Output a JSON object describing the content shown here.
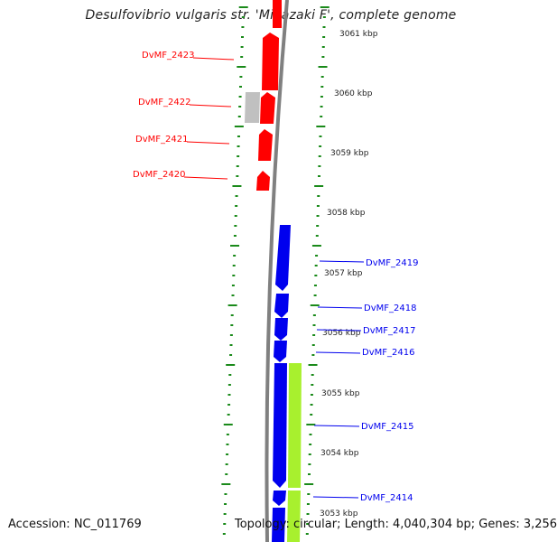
{
  "title": "Desulfovibrio vulgaris str. 'Miyazaki F', complete genome",
  "footer": {
    "accession": "Accession: NC_011769",
    "summary": "Topology: circular; Length: 4,040,304 bp; Genes: 3,256"
  },
  "colors": {
    "forward_cds": "#0000ee",
    "reverse_cds": "#ff0000",
    "other_feature": "#c0c0c0",
    "rna_feature": "#a8f02e",
    "backbone": "#808080",
    "tick": "#1a8a1a"
  },
  "kbp_labels": [
    "3061 kbp",
    "3060 kbp",
    "3059 kbp",
    "3058 kbp",
    "3057 kbp",
    "3056 kbp",
    "3055 kbp",
    "3054 kbp",
    "3053 kbp"
  ],
  "gene_labels_left": [
    "DvMF_2423",
    "DvMF_2422",
    "DvMF_2421",
    "DvMF_2420"
  ],
  "gene_labels_right": [
    "DvMF_2419",
    "DvMF_2418",
    "DvMF_2417",
    "DvMF_2416",
    "DvMF_2415",
    "DvMF_2414"
  ]
}
